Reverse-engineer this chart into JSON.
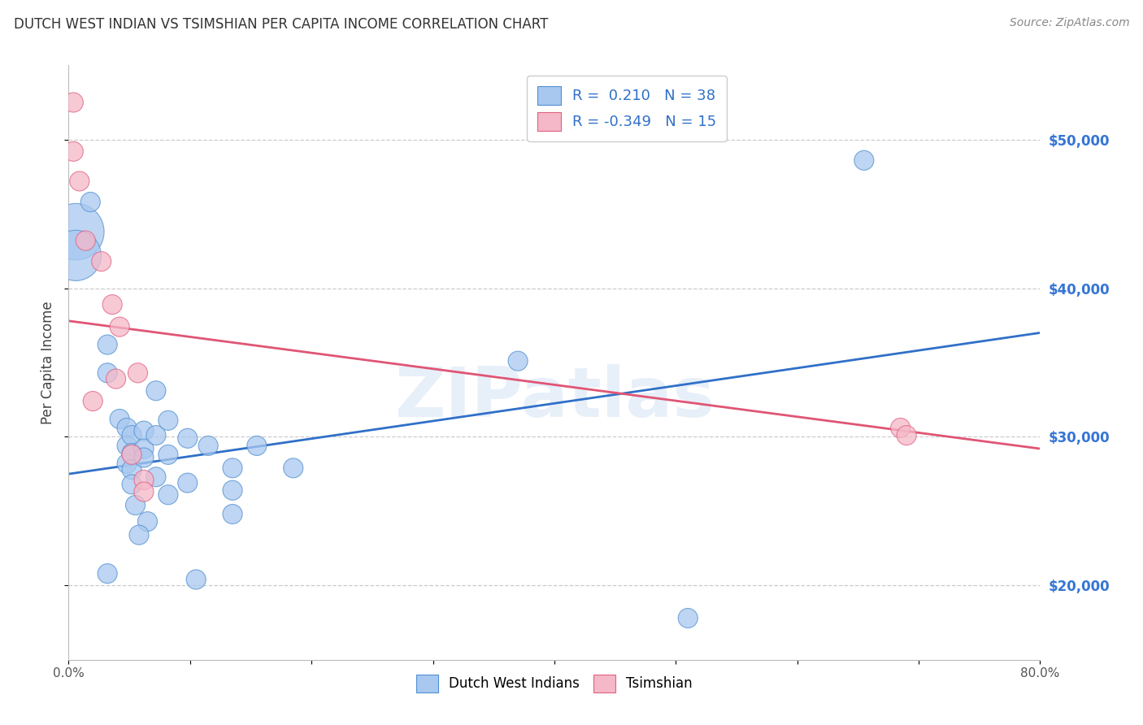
{
  "title": "DUTCH WEST INDIAN VS TSIMSHIAN PER CAPITA INCOME CORRELATION CHART",
  "source": "Source: ZipAtlas.com",
  "ylabel": "Per Capita Income",
  "legend_blue_r": "0.210",
  "legend_blue_n": "38",
  "legend_pink_r": "-0.349",
  "legend_pink_n": "15",
  "blue_color": "#A8C8F0",
  "pink_color": "#F5B8C8",
  "blue_edge_color": "#5090D0",
  "pink_edge_color": "#E06080",
  "blue_line_color": "#3070C8",
  "pink_line_color": "#E05575",
  "right_axis_color": "#3575D5",
  "watermark": "ZIPatlas",
  "blue_points": [
    [
      0.6,
      43800
    ],
    [
      0.6,
      42200
    ],
    [
      1.8,
      45800
    ],
    [
      3.2,
      36200
    ],
    [
      3.2,
      34300
    ],
    [
      4.2,
      31200
    ],
    [
      4.8,
      30600
    ],
    [
      4.8,
      29400
    ],
    [
      4.8,
      28200
    ],
    [
      5.2,
      30100
    ],
    [
      5.2,
      28900
    ],
    [
      5.2,
      27800
    ],
    [
      5.2,
      26800
    ],
    [
      6.2,
      30400
    ],
    [
      6.2,
      29200
    ],
    [
      6.2,
      28600
    ],
    [
      7.2,
      33100
    ],
    [
      7.2,
      30100
    ],
    [
      7.2,
      27300
    ],
    [
      8.2,
      31100
    ],
    [
      8.2,
      28800
    ],
    [
      8.2,
      26100
    ],
    [
      9.8,
      29900
    ],
    [
      9.8,
      26900
    ],
    [
      11.5,
      29400
    ],
    [
      13.5,
      27900
    ],
    [
      13.5,
      26400
    ],
    [
      13.5,
      24800
    ],
    [
      15.5,
      29400
    ],
    [
      18.5,
      27900
    ],
    [
      37.0,
      35100
    ],
    [
      51.0,
      17800
    ],
    [
      65.5,
      48600
    ],
    [
      3.2,
      20800
    ],
    [
      10.5,
      20400
    ],
    [
      6.5,
      24300
    ],
    [
      5.8,
      23400
    ],
    [
      5.5,
      25400
    ]
  ],
  "pink_points": [
    [
      0.4,
      52500
    ],
    [
      0.4,
      49200
    ],
    [
      0.9,
      47200
    ],
    [
      1.4,
      43200
    ],
    [
      2.7,
      41800
    ],
    [
      3.6,
      38900
    ],
    [
      4.2,
      37400
    ],
    [
      5.7,
      34300
    ],
    [
      6.2,
      27100
    ],
    [
      6.2,
      26300
    ],
    [
      68.5,
      30600
    ],
    [
      69.0,
      30100
    ],
    [
      2.0,
      32400
    ],
    [
      3.9,
      33900
    ],
    [
      5.2,
      28800
    ]
  ],
  "xlim": [
    0,
    80
  ],
  "ylim": [
    15000,
    55000
  ],
  "yticks": [
    20000,
    30000,
    40000,
    50000
  ],
  "ytick_labels": [
    "$20,000",
    "$30,000",
    "$40,000",
    "$50,000"
  ],
  "grid_color": "#CCCCCC",
  "background_color": "#FFFFFF",
  "blue_trend_x": [
    0,
    80
  ],
  "blue_trend_y": [
    27500,
    37000
  ],
  "pink_trend_x": [
    0,
    80
  ],
  "pink_trend_y": [
    37800,
    29200
  ]
}
